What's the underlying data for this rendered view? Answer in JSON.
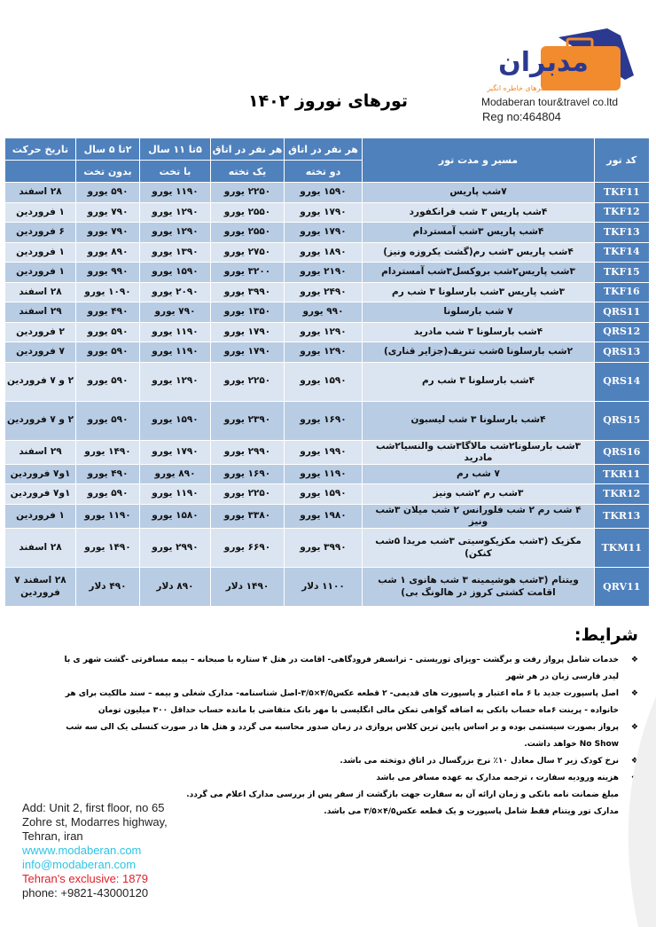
{
  "header": {
    "title": "تورهای نوروز ۱۴۰۲",
    "logo_text": "مدبران",
    "logo_tagline": "سفرهای خاطره انگیز",
    "company": "Modaberan tour&travel co.ltd",
    "reg": "Reg no:464804",
    "brand_orange": "#f28a2e",
    "brand_blue": "#2b3990"
  },
  "table": {
    "headers": {
      "code": "کد تور",
      "route": "مسیر و مدت تور",
      "double_1": "هر نفر در اتاق",
      "double_2": "دو تخته",
      "single_1": "هر نفر در اتاق",
      "single_2": "یک تخته",
      "child11_1": "۵تا ۱۱ سال",
      "child11_2": "با تخت",
      "child5_1": "۲تا ۵ سال",
      "child5_2": "بدون تخت",
      "date": "تاریخ حرکت"
    },
    "rows": [
      {
        "code": "TKF11",
        "route": "۷شب پاریس",
        "double": "۱۵۹۰ یورو",
        "single": "۲۲۵۰ یورو",
        "c11": "۱۱۹۰ یورو",
        "c5": "۵۹۰ یورو",
        "date": "۲۸ اسفند"
      },
      {
        "code": "TKF12",
        "route": "۴شب پاریس ۳ شب فرانکفورد",
        "double": "۱۷۹۰ یورو",
        "single": "۲۵۵۰ یورو",
        "c11": "۱۲۹۰ یورو",
        "c5": "۷۹۰ یورو",
        "date": "۱ فروردین"
      },
      {
        "code": "TKF13",
        "route": "۴شب پاریس ۳شب آمستردام",
        "double": "۱۷۹۰ یورو",
        "single": "۲۵۵۰ یورو",
        "c11": "۱۲۹۰ یورو",
        "c5": "۷۹۰ یورو",
        "date": "۶ فروردین"
      },
      {
        "code": "TKF14",
        "route": "۴شب پاریس ۳شب رم(گشت یکروزه ونیز)",
        "double": "۱۸۹۰ یورو",
        "single": "۲۷۵۰ یورو",
        "c11": "۱۳۹۰ یورو",
        "c5": "۸۹۰ یورو",
        "date": "۱ فروردین"
      },
      {
        "code": "TKF15",
        "route": "۳شب پاریس۲شب بروکسل۳شب آمستردام",
        "double": "۲۱۹۰ یورو",
        "single": "۳۲۰۰ یورو",
        "c11": "۱۵۹۰ یورو",
        "c5": "۹۹۰ یورو",
        "date": "۱ فروردین"
      },
      {
        "code": "TKF16",
        "route": "۳شب پاریس ۳شب بارسلونا ۳ شب رم",
        "double": "۲۴۹۰ یورو",
        "single": "۳۹۹۰ یورو",
        "c11": "۲۰۹۰ یورو",
        "c5": "۱۰۹۰ یورو",
        "date": "۲۸ اسفند"
      },
      {
        "code": "QRS11",
        "route": "۷ شب بارسلونا",
        "double": "۹۹۰ یورو",
        "single": "۱۳۵۰ یورو",
        "c11": "۷۹۰ یورو",
        "c5": "۴۹۰ یورو",
        "date": "۲۹ اسفند"
      },
      {
        "code": "QRS12",
        "route": "۴شب بارسلونا ۳ شب مادرید",
        "double": "۱۲۹۰ یورو",
        "single": "۱۷۹۰ یورو",
        "c11": "۱۱۹۰ یورو",
        "c5": "۵۹۰ یورو",
        "date": "۲ فروردین"
      },
      {
        "code": "QRS13",
        "route": "۲شب بارسلونا ۵شب تنریف(جزایر قناری)",
        "double": "۱۲۹۰ یورو",
        "single": "۱۷۹۰ یورو",
        "c11": "۱۱۹۰ یورو",
        "c5": "۵۹۰ یورو",
        "date": "۷ فروردین"
      },
      {
        "code": "QRS14",
        "route": "۴شب بارسلونا ۳ شب رم",
        "double": "۱۵۹۰ یورو",
        "single": "۲۲۵۰ یورو",
        "c11": "۱۲۹۰ یورو",
        "c5": "۵۹۰ یورو",
        "date": "۲ و ۷ فروردین"
      },
      {
        "code": "QRS15",
        "route": "۴شب بارسلونا ۳ شب لیسبون",
        "double": "۱۶۹۰ یورو",
        "single": "۲۳۹۰ یورو",
        "c11": "۱۵۹۰ یورو",
        "c5": "۵۹۰ یورو",
        "date": "۲ و ۷ فروردین"
      },
      {
        "code": "QRS16",
        "route": "۳شب بارسلونا۲شب مالاگا۳شب والنسیا۲شب مادرید",
        "double": "۱۹۹۰ یورو",
        "single": "۲۹۹۰ یورو",
        "c11": "۱۷۹۰ یورو",
        "c5": "۱۴۹۰ یورو",
        "date": "۲۹ اسفند"
      },
      {
        "code": "TKR11",
        "route": "۷ شب رم",
        "double": "۱۱۹۰ یورو",
        "single": "۱۶۹۰ یورو",
        "c11": "۸۹۰ یورو",
        "c5": "۴۹۰ یورو",
        "date": "۱و۷ فروردین"
      },
      {
        "code": "TKR12",
        "route": "۳شب رم ۲شب ونیز",
        "double": "۱۵۹۰ یورو",
        "single": "۲۲۵۰ یورو",
        "c11": "۱۱۹۰ یورو",
        "c5": "۵۹۰ یورو",
        "date": "۱و۷ فروردین"
      },
      {
        "code": "TKR13",
        "route": "۴ شب رم ۲ شب فلورانس ۲ شب میلان ۳شب ونیز",
        "double": "۱۹۸۰ یورو",
        "single": "۳۳۸۰ یورو",
        "c11": "۱۵۸۰ یورو",
        "c5": "۱۱۹۰ یورو",
        "date": "۱ فروردین"
      },
      {
        "code": "TKM11",
        "route": "مکزیک (۳شب مکزیکوسیتی ۳شب مریدا ۵شب کنکن)",
        "double": "۳۹۹۰ یورو",
        "single": "۶۶۹۰ یورو",
        "c11": "۲۹۹۰ یورو",
        "c5": "۱۴۹۰ یورو",
        "date": "۲۸ اسفند"
      },
      {
        "code": "QRV11",
        "route": "ویتنام (۳شب هوشیمینه ۳ شب هانوی ۱ شب اقامت کشتی کروز در هالونگ بی)",
        "double": "۱۱۰۰ دلار",
        "single": "۱۴۹۰ دلار",
        "c11": "۸۹۰ دلار",
        "c5": "۴۹۰ دلار",
        "date": "۲۸ اسفند ۷ فروردین"
      }
    ]
  },
  "conditions": {
    "title": "شرایط:",
    "items": [
      "خدمات شامل پرواز رفت و برگشت –ویزای توریستی - ترانسفر فرودگاهی- اقامت در هتل ۴ ستاره با صبحانه – بیمه مسافرتی -گشت شهر ی با لیدر فارسی زبان در هر شهر",
      "اصل پاسپورت جدید با ۶ ماه اعتبار و پاسپورت های قدیمی- ۲ قطعه عکس۴/۵×۳/۵-اصل شناسنامه- مدارک شغلی و بیمه – سند مالکیت برای هر خانواده - پرینت ۶ماه حساب بانکی به اضافه گواهی تمکن مالی انگلیسی با مهر بانک متقاضی با مانده حساب حداقل ۳۰۰ میلیون تومان",
      "پرواز بصورت سیستمی بوده و بر اساس پایین ترین کلاس پروازی در زمان صدور محاسبه می گردد و هتل ها در صورت کنسلی یک الی سه شب No Show خواهد داشت.",
      "نرخ کودک زیر ۲ سال معادل ۱۰٪ نرخ بزرگسال در اتاق دوتخته می باشد.",
      "هزینه ورودیه سفارت ، ترجمه مدارک به عهده مسافر می باشد",
      "مبلغ ضمانت نامه بانکی و زمان ارائه آن به سفارت جهت بازگشت از سفر پس از بررسی مدارک اعلام می گردد.",
      "مدارک تور ویتنام فقط شامل پاسپورت و یک قطعه عکس۴/۵×۳/۵ می باشد."
    ]
  },
  "contact": {
    "address_1": "Add: Unit 2, first floor, no 65",
    "address_2": "Zohre st, Modarres highway,",
    "address_3": "Tehran, iran",
    "website": "wwww.modaberan.com",
    "email": "info@modaberan.com",
    "exclusive": "Tehran's exclusive: 1879",
    "phone": "phone: +9821-43000120"
  }
}
